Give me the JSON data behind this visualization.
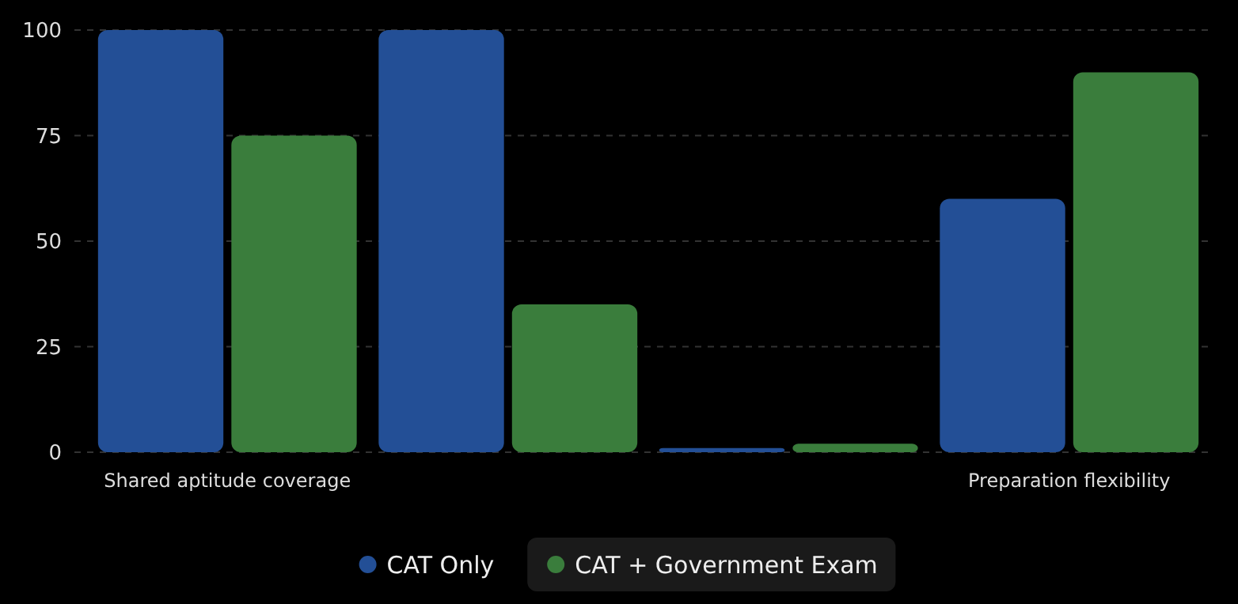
{
  "chart_data": {
    "type": "bar",
    "categories": [
      "Shared aptitude coverage",
      null,
      null,
      "Preparation flexibility"
    ],
    "series": [
      {
        "name": "CAT Only",
        "color": "#234f96",
        "values": [
          100,
          100,
          1,
          60
        ]
      },
      {
        "name": "CAT + Government Exam",
        "color": "#3a7d3c",
        "values": [
          75,
          35,
          2,
          90
        ]
      }
    ],
    "ylim": [
      0,
      100
    ],
    "yticks": [
      0,
      25,
      50,
      75,
      100
    ],
    "grid": "y",
    "legend": "bottom"
  }
}
